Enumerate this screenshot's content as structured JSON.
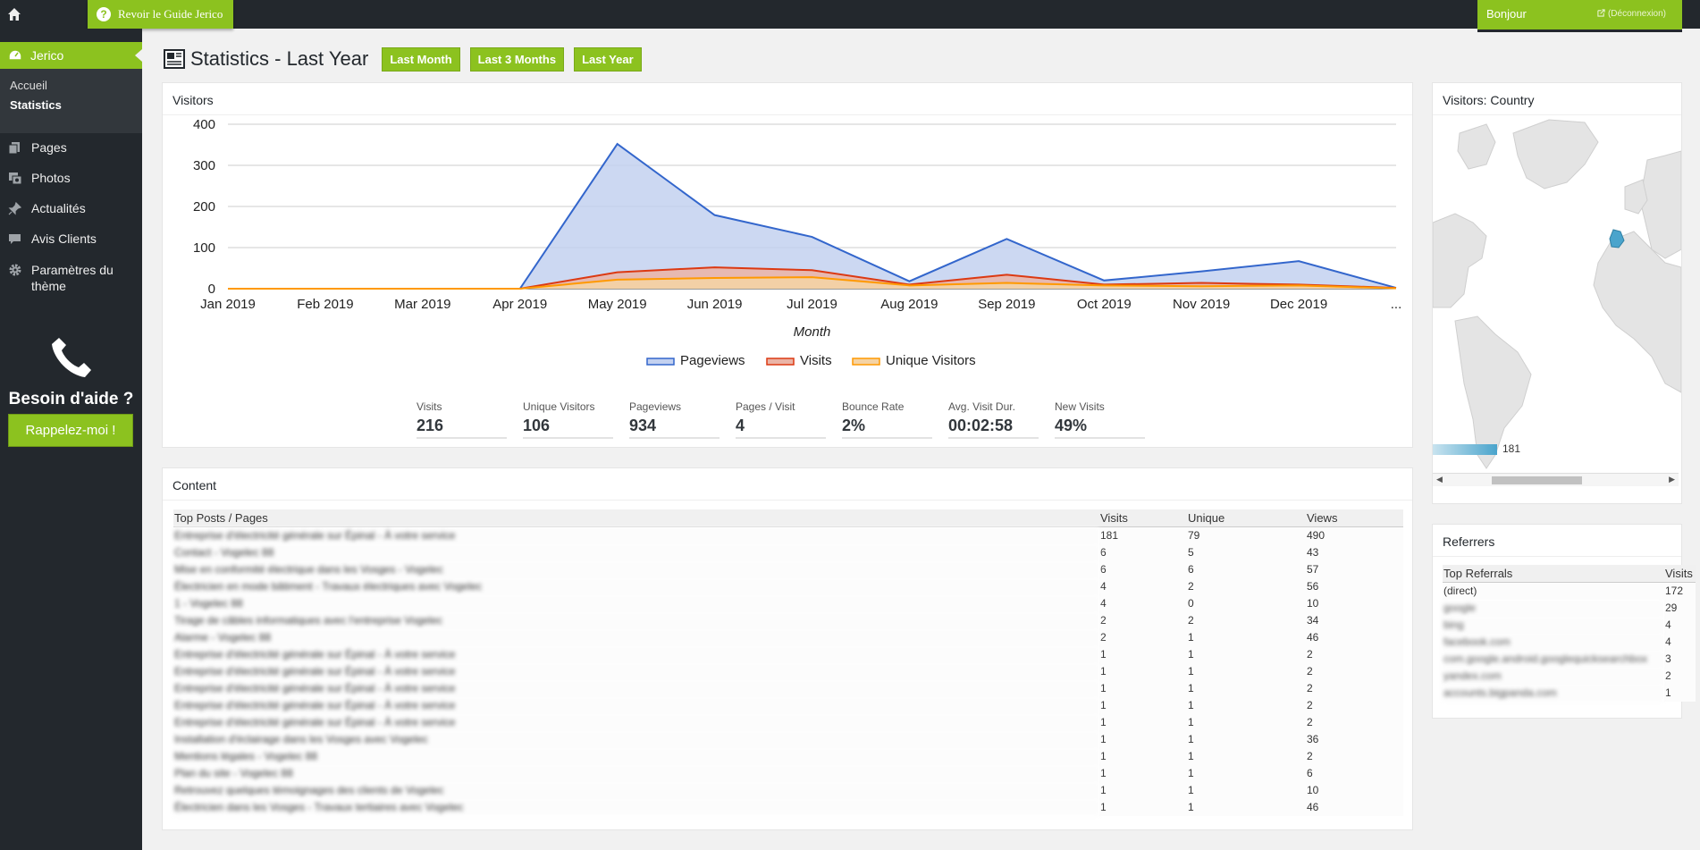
{
  "topbar": {
    "home_icon": "home-icon",
    "guide_label": "Revoir le Guide Jerico",
    "greeting": "Bonjour",
    "logout_label": "(Déconnexion)"
  },
  "sidebar": {
    "active_label": "Jerico",
    "sub_items": [
      "Accueil",
      "Statistics"
    ],
    "items": [
      {
        "label": "Pages",
        "icon": "pages-icon"
      },
      {
        "label": "Photos",
        "icon": "photos-icon"
      },
      {
        "label": "Actualités",
        "icon": "pin-icon"
      },
      {
        "label": "Avis Clients",
        "icon": "comment-icon"
      },
      {
        "label": "Paramètres du thème",
        "icon": "gear-icon"
      }
    ],
    "help_title": "Besoin d'aide ?",
    "callback_label": "Rappelez-moi !"
  },
  "header": {
    "title": "Statistics - Last Year",
    "buttons": [
      "Last Month",
      "Last 3 Months",
      "Last Year"
    ]
  },
  "visitors_panel": {
    "title": "Visitors",
    "stats": [
      {
        "label": "Visits",
        "value": "216"
      },
      {
        "label": "Unique Visitors",
        "value": "106"
      },
      {
        "label": "Pageviews",
        "value": "934"
      },
      {
        "label": "Pages / Visit",
        "value": "4"
      },
      {
        "label": "Bounce Rate",
        "value": "2%"
      },
      {
        "label": "Avg. Visit Dur.",
        "value": "00:02:58"
      },
      {
        "label": "New Visits",
        "value": "49%"
      }
    ]
  },
  "chart_data": {
    "type": "area",
    "categories": [
      "Jan 2019",
      "Feb 2019",
      "Mar 2019",
      "Apr 2019",
      "May 2019",
      "Jun 2019",
      "Jul 2019",
      "Aug 2019",
      "Sep 2019",
      "Oct 2019",
      "Nov 2019",
      "Dec 2019",
      "..."
    ],
    "series": [
      {
        "name": "Pageviews",
        "color": "#3366cc",
        "fill": "#c3d1f0",
        "values": [
          0,
          0,
          0,
          0,
          352,
          179,
          126,
          18,
          121,
          20,
          42,
          67,
          2
        ]
      },
      {
        "name": "Visits",
        "color": "#dc3912",
        "fill": "#ebb4a6",
        "values": [
          0,
          0,
          0,
          0,
          40,
          52,
          45,
          10,
          34,
          10,
          14,
          10,
          2
        ]
      },
      {
        "name": "Unique Visitors",
        "color": "#ff9900",
        "fill": "#f5d3a4",
        "values": [
          0,
          0,
          0,
          0,
          22,
          26,
          28,
          8,
          14,
          8,
          6,
          8,
          1
        ]
      }
    ],
    "xlabel": "Month",
    "ylabel": "",
    "ylim": [
      0,
      400
    ],
    "yticks": [
      "0",
      "100",
      "200",
      "300",
      "400"
    ],
    "grid": true,
    "legend": "bottom"
  },
  "country_panel": {
    "title": "Visitors: Country",
    "legend_value": "181"
  },
  "content_panel": {
    "title": "Content",
    "columns": [
      "Top Posts / Pages",
      "Visits",
      "Unique",
      "Views"
    ],
    "rows": [
      [
        "Entreprise d'électricité générale sur Épinal - À votre service",
        "181",
        "79",
        "490"
      ],
      [
        "Contact - Vogelec 88",
        "6",
        "5",
        "43"
      ],
      [
        "Mise en conformité électrique dans les Vosges - Vogelec",
        "6",
        "6",
        "57"
      ],
      [
        "Électricien en mode bâtiment - Travaux électriques avec Vogelec",
        "4",
        "2",
        "56"
      ],
      [
        "1 - Vogelec 88",
        "4",
        "0",
        "10"
      ],
      [
        "Tirage de câbles informatiques avec l'entreprise Vogelec",
        "2",
        "2",
        "34"
      ],
      [
        "Alarme - Vogelec 88",
        "2",
        "1",
        "46"
      ],
      [
        "Entreprise d'électricité générale sur Épinal - À votre service",
        "1",
        "1",
        "2"
      ],
      [
        "Entreprise d'électricité générale sur Épinal - À votre service",
        "1",
        "1",
        "2"
      ],
      [
        "Entreprise d'électricité générale sur Épinal - À votre service",
        "1",
        "1",
        "2"
      ],
      [
        "Entreprise d'électricité générale sur Épinal - À votre service",
        "1",
        "1",
        "2"
      ],
      [
        "Entreprise d'électricité générale sur Épinal - À votre service",
        "1",
        "1",
        "2"
      ],
      [
        "Installation d'éclairage dans les Vosges avec Vogelec",
        "1",
        "1",
        "36"
      ],
      [
        "Mentions légales - Vogelec 88",
        "1",
        "1",
        "2"
      ],
      [
        "Plan du site - Vogelec 88",
        "1",
        "1",
        "6"
      ],
      [
        "Retrouvez quelques témoignages des clients de Vogelec",
        "1",
        "1",
        "10"
      ],
      [
        "Électricien dans les Vosges - Travaux tertiaires avec Vogelec",
        "1",
        "1",
        "46"
      ]
    ]
  },
  "referrers_panel": {
    "title": "Referrers",
    "columns": [
      "Top Referrals",
      "Visits"
    ],
    "rows": [
      [
        "(direct)",
        "172"
      ],
      [
        "google",
        "29"
      ],
      [
        "bing",
        "4"
      ],
      [
        "facebook.com",
        "4"
      ],
      [
        "com.google.android.googlequicksearchbox",
        "3"
      ],
      [
        "yandex.com",
        "2"
      ],
      [
        "accounts.bigpanda.com",
        "1"
      ]
    ]
  }
}
